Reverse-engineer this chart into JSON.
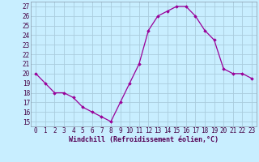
{
  "hours": [
    0,
    1,
    2,
    3,
    4,
    5,
    6,
    7,
    8,
    9,
    10,
    11,
    12,
    13,
    14,
    15,
    16,
    17,
    18,
    19,
    20,
    21,
    22,
    23
  ],
  "values": [
    20,
    19,
    18,
    18,
    17.5,
    16.5,
    16,
    15.5,
    15,
    17,
    19,
    21,
    24.5,
    26,
    26.5,
    27,
    27,
    26,
    24.5,
    23.5,
    20.5,
    20,
    20,
    19.5
  ],
  "line_color": "#990099",
  "marker": "D",
  "marker_size": 1.8,
  "xlabel": "Windchill (Refroidissement éolien,°C)",
  "ylabel_ticks": [
    15,
    16,
    17,
    18,
    19,
    20,
    21,
    22,
    23,
    24,
    25,
    26,
    27
  ],
  "ylim": [
    14.5,
    27.5
  ],
  "xlim": [
    -0.5,
    23.5
  ],
  "bg_color": "#c8eeff",
  "grid_color": "#aaccdd",
  "spine_color": "#8899aa",
  "tick_color": "#440044",
  "xlabel_color": "#550055",
  "tick_fontsize": 5.5,
  "xlabel_fontsize": 6.0
}
